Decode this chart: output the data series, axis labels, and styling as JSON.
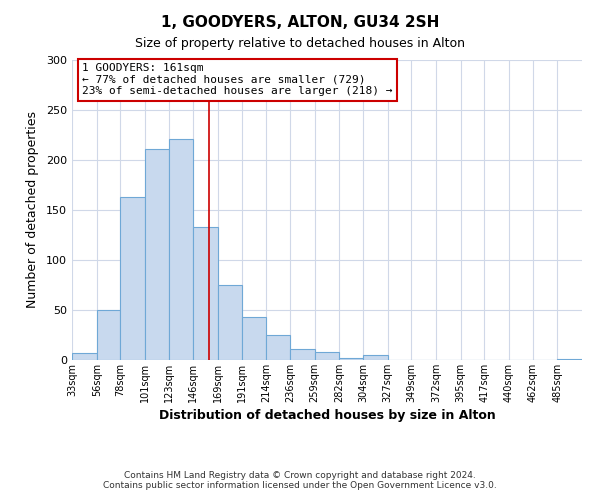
{
  "title": "1, GOODYERS, ALTON, GU34 2SH",
  "subtitle": "Size of property relative to detached houses in Alton",
  "xlabel": "Distribution of detached houses by size in Alton",
  "ylabel": "Number of detached properties",
  "bar_labels": [
    "33sqm",
    "56sqm",
    "78sqm",
    "101sqm",
    "123sqm",
    "146sqm",
    "169sqm",
    "191sqm",
    "214sqm",
    "236sqm",
    "259sqm",
    "282sqm",
    "304sqm",
    "327sqm",
    "349sqm",
    "372sqm",
    "395sqm",
    "417sqm",
    "440sqm",
    "462sqm",
    "485sqm"
  ],
  "bar_values": [
    7,
    50,
    163,
    211,
    221,
    133,
    75,
    43,
    25,
    11,
    8,
    2,
    5,
    0,
    0,
    0,
    0,
    0,
    0,
    0,
    1
  ],
  "bar_color": "#c8d9ee",
  "bar_edgecolor": "#6fa8d6",
  "property_line_x": 161,
  "bin_edges": [
    33,
    56,
    78,
    101,
    123,
    146,
    169,
    191,
    214,
    236,
    259,
    282,
    304,
    327,
    349,
    372,
    395,
    417,
    440,
    462,
    485,
    508
  ],
  "annotation_title": "1 GOODYERS: 161sqm",
  "annotation_line1": "← 77% of detached houses are smaller (729)",
  "annotation_line2": "23% of semi-detached houses are larger (218) →",
  "annotation_box_color": "#cc0000",
  "vline_color": "#cc0000",
  "ylim": [
    0,
    300
  ],
  "yticks": [
    0,
    50,
    100,
    150,
    200,
    250,
    300
  ],
  "grid_color": "#d0d8e8",
  "background_color": "#ffffff",
  "footnote1": "Contains HM Land Registry data © Crown copyright and database right 2024.",
  "footnote2": "Contains public sector information licensed under the Open Government Licence v3.0."
}
